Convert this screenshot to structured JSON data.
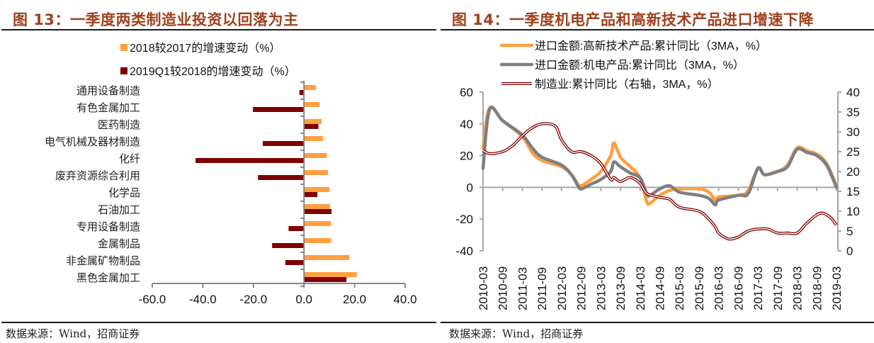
{
  "left": {
    "title": "图 13：一季度两类制造业投资以回落为主",
    "source": "数据来源：Wind，招商证券",
    "chart_data": {
      "type": "bar",
      "orientation": "horizontal",
      "title": "图 13：一季度两类制造业投资以回落为主",
      "categories": [
        "通用设备制造",
        "有色金属加工",
        "医药制造",
        "电气机械及器材制造",
        "化纤",
        "废弃资源综合利用",
        "化学品",
        "石油加工",
        "专用设备制造",
        "金属制品",
        "非金属矿物制品",
        "黑色金属加工"
      ],
      "series": [
        {
          "name": "2018较2017的增速变动（%）",
          "color": "#ff9f3f",
          "values": [
            4.7,
            6.2,
            7.0,
            7.5,
            9.0,
            9.5,
            10.1,
            10.3,
            10.7,
            10.7,
            18.0,
            20.9
          ]
        },
        {
          "name": "2019Q1较2018的增速变动（%）",
          "color": "#800000",
          "values": [
            -1.8,
            -20.2,
            5.7,
            -16.3,
            -42.9,
            -18.2,
            5.3,
            10.9,
            -6.1,
            -12.6,
            -7.4,
            16.8
          ]
        }
      ],
      "xlim": [
        -60,
        40
      ],
      "xticks": [
        -60,
        -40,
        -20,
        0,
        20,
        40
      ],
      "xtick_labels": [
        "-60.0",
        "-40.0",
        "-20.0",
        "0.0",
        "20.0",
        "40.0"
      ],
      "legend_position": "top",
      "grid": false
    }
  },
  "right": {
    "title": "图 14：一季度机电产品和高新技术产品进口增速下降",
    "source": "数据来源：Wind，招商证券",
    "chart_data": {
      "type": "line",
      "title": "图 14：一季度机电产品和高新技术产品进口增速下降",
      "x_start": "2010-03",
      "x_end": "2019-03",
      "xtick_labels": [
        "2010-03",
        "2010-09",
        "2011-03",
        "2011-09",
        "2012-03",
        "2012-09",
        "2013-03",
        "2013-09",
        "2014-03",
        "2014-09",
        "2015-03",
        "2015-09",
        "2016-03",
        "2016-09",
        "2017-03",
        "2017-09",
        "2018-03",
        "2018-09",
        "2019-03"
      ],
      "ylim_left": [
        -40,
        60
      ],
      "yticks_left": [
        -40,
        -20,
        0,
        20,
        40,
        60
      ],
      "ylim_right": [
        0,
        40
      ],
      "yticks_right": [
        0,
        5,
        10,
        15,
        20,
        25,
        30,
        35,
        40
      ],
      "legend_position": "top",
      "grid": false,
      "series": [
        {
          "name": "进口金额:高新技术产品:累计同比（3MA，%）",
          "axis": "left",
          "color": "#ff9f3f",
          "style": "thick",
          "months": [
            0,
            2,
            6,
            12,
            15,
            18,
            24,
            27,
            29,
            30,
            33,
            36,
            39,
            40,
            42,
            45,
            48,
            50,
            51,
            54,
            57,
            60,
            66,
            69,
            71,
            72,
            78,
            81,
            84,
            86,
            90,
            93,
            96,
            99,
            102,
            105,
            108
          ],
          "values": [
            25,
            50,
            42,
            32,
            22,
            17,
            13,
            8,
            2,
            1,
            5,
            10,
            20,
            28,
            19,
            13,
            6,
            -9,
            -10,
            -5,
            -2,
            -1,
            -1,
            -3,
            -8,
            -6,
            -5,
            -2,
            12,
            8,
            10,
            14,
            25,
            23,
            21,
            15,
            1
          ]
        },
        {
          "name": "进口金额:机电产品:累计同比（3MA，%）",
          "axis": "left",
          "color": "#7f7f7f",
          "style": "thick",
          "months": [
            0,
            2,
            6,
            12,
            15,
            18,
            24,
            27,
            29,
            30,
            33,
            36,
            39,
            40,
            42,
            45,
            48,
            50,
            51,
            54,
            57,
            60,
            66,
            69,
            71,
            72,
            78,
            81,
            84,
            86,
            90,
            93,
            96,
            99,
            102,
            105,
            108
          ],
          "values": [
            12,
            49,
            42,
            33,
            25,
            19,
            14,
            8,
            1,
            -1,
            2,
            5,
            10,
            16,
            13,
            9,
            6,
            -4,
            -5,
            -1,
            1,
            -3,
            -5,
            -7,
            -11,
            -8,
            -5,
            -4,
            12,
            8,
            10,
            13,
            24,
            22,
            20,
            14,
            0
          ]
        },
        {
          "name": "制造业:累计同比（右轴，3MA，%）",
          "axis": "right",
          "color": "#800000",
          "style": "double",
          "months": [
            0,
            2,
            6,
            9,
            12,
            15,
            18,
            22,
            24,
            27,
            30,
            33,
            36,
            39,
            40,
            42,
            45,
            48,
            50,
            54,
            57,
            60,
            66,
            69,
            71,
            72,
            75,
            78,
            81,
            84,
            87,
            90,
            93,
            96,
            99,
            103,
            106,
            108
          ],
          "values": [
            25.3,
            24.5,
            25,
            26.5,
            29,
            31,
            32,
            31.5,
            28,
            25,
            25,
            24,
            22,
            18,
            18.5,
            17.5,
            18.5,
            17,
            14.5,
            13.5,
            13,
            11,
            10,
            8,
            6,
            4.5,
            3,
            3.5,
            5,
            5.5,
            5.5,
            4.5,
            4.5,
            4.5,
            7,
            9.5,
            8.5,
            6.5
          ]
        }
      ]
    }
  }
}
